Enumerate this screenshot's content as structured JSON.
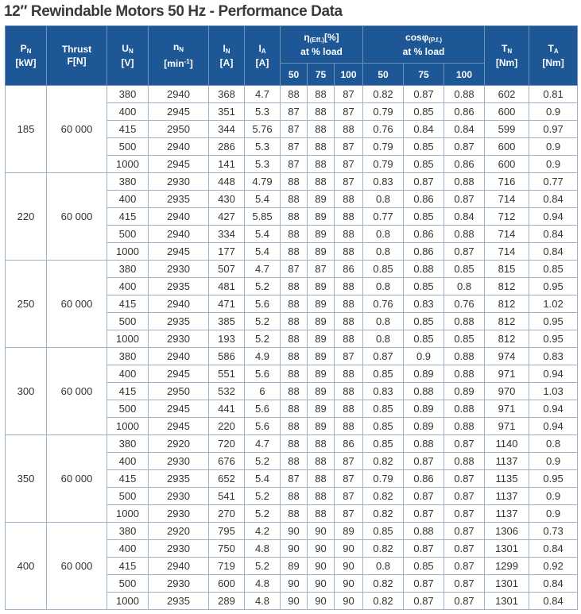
{
  "title": "12″ Rewindable Motors 50 Hz - Performance Data",
  "header": {
    "pn_main": "P",
    "pn_sub": "N",
    "pn_unit": "[kW]",
    "thrust_l1": "Thrust",
    "thrust_l2": "F[N]",
    "un_main": "U",
    "un_sub": "N",
    "un_unit": "[V]",
    "nn_main": "n",
    "nn_sub": "N",
    "nn_unit_pre": "[min",
    "nn_unit_sup": "-1",
    "nn_unit_post": "]",
    "in_main": "I",
    "in_sub": "N",
    "in_unit": "[A]",
    "ia_main": "I",
    "ia_sub": "A",
    "ia_unit": "[A]",
    "eff_main": "η",
    "eff_sub": "(Eff.)",
    "eff_unit": "[%]",
    "eff_l2": "at % load",
    "pf_main": "cosφ",
    "pf_sub": "(P.f.)",
    "pf_l2": "at % load",
    "tn_main": "T",
    "tn_sub": "N",
    "tn_unit": "[Nm]",
    "ta_main": "T",
    "ta_sub": "A",
    "ta_unit": "[Nm]",
    "load_levels": [
      "50",
      "75",
      "100"
    ]
  },
  "groups": [
    {
      "pn": "185",
      "thrust": "60 000",
      "rows": [
        [
          "380",
          "2940",
          "368",
          "4.7",
          "88",
          "88",
          "87",
          "0.82",
          "0.87",
          "0.88",
          "602",
          "0.81"
        ],
        [
          "400",
          "2945",
          "351",
          "5.3",
          "87",
          "88",
          "87",
          "0.79",
          "0.85",
          "0.86",
          "600",
          "0.9"
        ],
        [
          "415",
          "2950",
          "344",
          "5.76",
          "87",
          "88",
          "88",
          "0.76",
          "0.84",
          "0.84",
          "599",
          "0.97"
        ],
        [
          "500",
          "2940",
          "286",
          "5.3",
          "87",
          "88",
          "87",
          "0.79",
          "0.85",
          "0.87",
          "600",
          "0.9"
        ],
        [
          "1000",
          "2945",
          "141",
          "5.3",
          "87",
          "88",
          "87",
          "0.79",
          "0.85",
          "0.86",
          "600",
          "0.9"
        ]
      ]
    },
    {
      "pn": "220",
      "thrust": "60 000",
      "rows": [
        [
          "380",
          "2930",
          "448",
          "4.79",
          "88",
          "88",
          "87",
          "0.83",
          "0.87",
          "0.88",
          "716",
          "0.77"
        ],
        [
          "400",
          "2935",
          "430",
          "5.4",
          "88",
          "89",
          "88",
          "0.8",
          "0.86",
          "0.87",
          "714",
          "0.84"
        ],
        [
          "415",
          "2940",
          "427",
          "5.85",
          "88",
          "89",
          "88",
          "0.77",
          "0.85",
          "0.84",
          "712",
          "0.94"
        ],
        [
          "500",
          "2940",
          "334",
          "5.4",
          "88",
          "89",
          "88",
          "0.8",
          "0.86",
          "0.88",
          "714",
          "0.84"
        ],
        [
          "1000",
          "2945",
          "177",
          "5.4",
          "88",
          "89",
          "88",
          "0.8",
          "0.86",
          "0.87",
          "714",
          "0.84"
        ]
      ]
    },
    {
      "pn": "250",
      "thrust": "60 000",
      "rows": [
        [
          "380",
          "2930",
          "507",
          "4.7",
          "87",
          "87",
          "86",
          "0.85",
          "0.88",
          "0.85",
          "815",
          "0.85"
        ],
        [
          "400",
          "2935",
          "481",
          "5.2",
          "88",
          "89",
          "88",
          "0.8",
          "0.85",
          "0.8",
          "812",
          "0.95"
        ],
        [
          "415",
          "2940",
          "471",
          "5.6",
          "88",
          "89",
          "88",
          "0.76",
          "0.83",
          "0.76",
          "812",
          "1.02"
        ],
        [
          "500",
          "2935",
          "385",
          "5.2",
          "88",
          "89",
          "88",
          "0.8",
          "0.85",
          "0.88",
          "812",
          "0.95"
        ],
        [
          "1000",
          "2930",
          "193",
          "5.2",
          "88",
          "89",
          "88",
          "0.8",
          "0.85",
          "0.85",
          "812",
          "0.95"
        ]
      ]
    },
    {
      "pn": "300",
      "thrust": "60 000",
      "rows": [
        [
          "380",
          "2940",
          "586",
          "4.9",
          "88",
          "89",
          "87",
          "0.87",
          "0.9",
          "0.88",
          "974",
          "0.83"
        ],
        [
          "400",
          "2945",
          "551",
          "5.6",
          "88",
          "89",
          "88",
          "0.85",
          "0.89",
          "0.88",
          "971",
          "0.94"
        ],
        [
          "415",
          "2950",
          "532",
          "6",
          "88",
          "89",
          "88",
          "0.83",
          "0.88",
          "0.89",
          "970",
          "1.03"
        ],
        [
          "500",
          "2945",
          "441",
          "5.6",
          "88",
          "89",
          "88",
          "0.85",
          "0.89",
          "0.88",
          "971",
          "0.94"
        ],
        [
          "1000",
          "2945",
          "220",
          "5.6",
          "88",
          "89",
          "88",
          "0.85",
          "0.89",
          "0.88",
          "971",
          "0.94"
        ]
      ]
    },
    {
      "pn": "350",
      "thrust": "60 000",
      "rows": [
        [
          "380",
          "2920",
          "720",
          "4.7",
          "88",
          "88",
          "86",
          "0.85",
          "0.88",
          "0.87",
          "1140",
          "0.8"
        ],
        [
          "400",
          "2930",
          "676",
          "5.2",
          "88",
          "88",
          "87",
          "0.82",
          "0.87",
          "0.88",
          "1137",
          "0.9"
        ],
        [
          "415",
          "2935",
          "652",
          "5.4",
          "87",
          "88",
          "87",
          "0.79",
          "0.86",
          "0.87",
          "1135",
          "0.95"
        ],
        [
          "500",
          "2930",
          "541",
          "5.2",
          "88",
          "88",
          "87",
          "0.82",
          "0.87",
          "0.87",
          "1137",
          "0.9"
        ],
        [
          "1000",
          "2930",
          "270",
          "5.2",
          "88",
          "88",
          "87",
          "0.82",
          "0.87",
          "0.87",
          "1137",
          "0.9"
        ]
      ]
    },
    {
      "pn": "400",
      "thrust": "60 000",
      "rows": [
        [
          "380",
          "2920",
          "795",
          "4.2",
          "90",
          "90",
          "89",
          "0.85",
          "0.88",
          "0.87",
          "1306",
          "0.73"
        ],
        [
          "400",
          "2930",
          "750",
          "4.8",
          "90",
          "90",
          "90",
          "0.82",
          "0.87",
          "0.87",
          "1301",
          "0.84"
        ],
        [
          "415",
          "2940",
          "719",
          "5.2",
          "89",
          "90",
          "90",
          "0.8",
          "0.85",
          "0.87",
          "1299",
          "0.92"
        ],
        [
          "500",
          "2930",
          "600",
          "4.8",
          "90",
          "90",
          "90",
          "0.82",
          "0.87",
          "0.87",
          "1301",
          "0.84"
        ],
        [
          "1000",
          "2935",
          "289",
          "4.8",
          "90",
          "90",
          "90",
          "0.82",
          "0.87",
          "0.87",
          "1301",
          "0.84"
        ]
      ]
    }
  ]
}
